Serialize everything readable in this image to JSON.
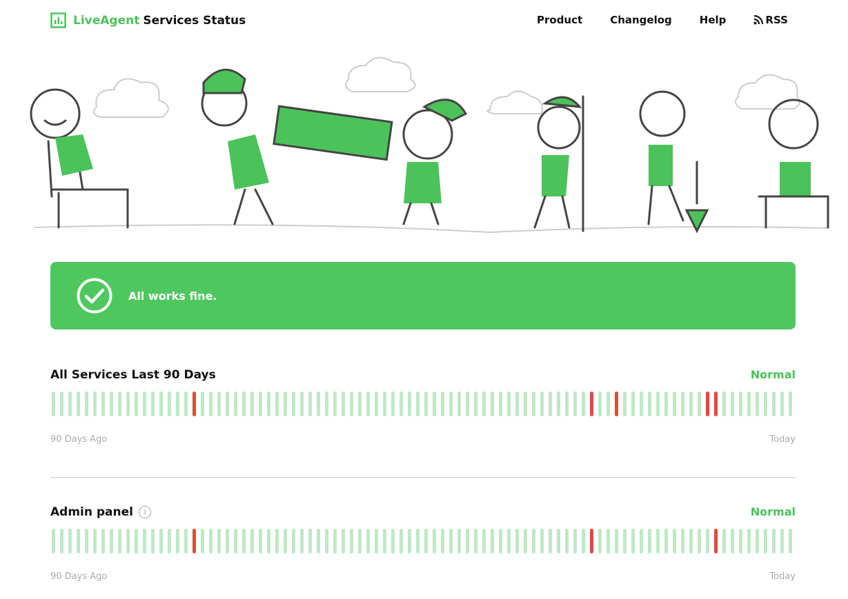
{
  "header": {
    "brand": "LiveAgent",
    "title": "Services Status",
    "nav": [
      {
        "label": "Product"
      },
      {
        "label": "Changelog"
      },
      {
        "label": "Help"
      },
      {
        "label": "RSS",
        "icon": "rss-icon"
      }
    ]
  },
  "banner": {
    "icon": "check-circle-icon",
    "message": "All works fine."
  },
  "colors": {
    "accent": "#4bc35a",
    "up": "#bfe8c5",
    "down": "#e24a3b"
  },
  "sections": [
    {
      "title": "All Services Last 90 Days",
      "status": "Normal",
      "days": 90,
      "down_days_index": [
        17,
        65,
        68,
        79,
        80
      ],
      "start_label": "90 Days Ago",
      "end_label": "Today"
    },
    {
      "title": "Admin panel",
      "info_icon": "info-icon",
      "status": "Normal",
      "days": 90,
      "down_days_index": [
        17,
        65,
        80
      ],
      "start_label": "90 Days Ago",
      "end_label": "Today"
    }
  ]
}
